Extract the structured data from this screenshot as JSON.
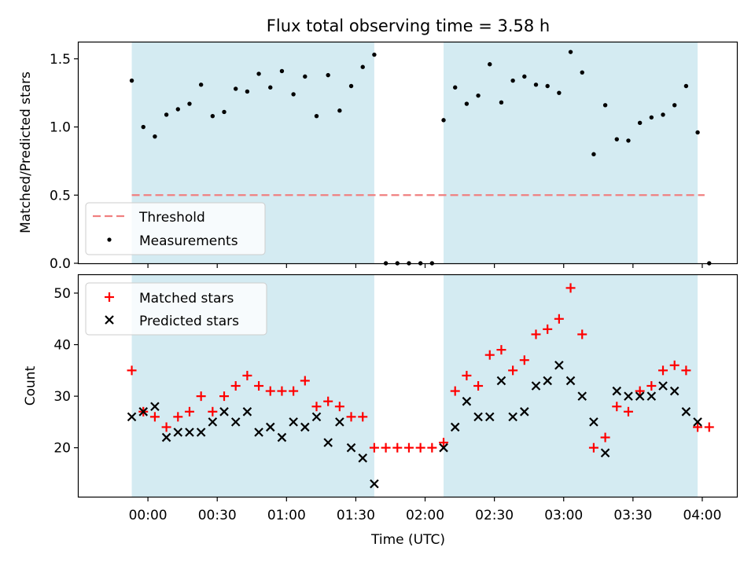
{
  "chart_data": {
    "title": "Flux total observing time = 3.58 h",
    "xlabel": "Time (UTC)",
    "x_ticks": [
      "00:00",
      "00:30",
      "01:00",
      "01:30",
      "02:00",
      "02:30",
      "03:00",
      "03:30",
      "04:00"
    ],
    "x_range_minutes": [
      -30,
      255
    ],
    "shaded_intervals_minutes": [
      [
        -7,
        98
      ],
      [
        128,
        238
      ]
    ],
    "shade_color": "#add8e6",
    "panels": [
      {
        "type": "scatter",
        "ylabel": "Matched/Predicted stars",
        "ylim": [
          0,
          1.62
        ],
        "y_ticks": [
          0.0,
          0.5,
          1.0,
          1.5
        ],
        "legend": "lower-left",
        "threshold": {
          "name": "Threshold",
          "value": 0.5,
          "x_range_minutes": [
            -7,
            241
          ],
          "color": "#f08080"
        },
        "series": [
          {
            "name": "Measurements",
            "color": "#000000",
            "x": [
              -7,
              -2,
              3,
              8,
              13,
              18,
              23,
              28,
              33,
              38,
              43,
              48,
              53,
              58,
              63,
              68,
              73,
              78,
              83,
              88,
              93,
              98,
              103,
              108,
              113,
              118,
              123,
              128,
              133,
              138,
              143,
              148,
              153,
              158,
              163,
              168,
              173,
              178,
              183,
              188,
              193,
              198,
              203,
              208,
              213,
              218,
              223,
              228,
              233,
              238,
              243
            ],
            "y": [
              1.34,
              1.0,
              0.93,
              1.09,
              1.13,
              1.17,
              1.31,
              1.08,
              1.11,
              1.28,
              1.26,
              1.39,
              1.29,
              1.41,
              1.24,
              1.37,
              1.08,
              1.38,
              1.12,
              1.3,
              1.44,
              1.53,
              0,
              0,
              0,
              0,
              0,
              1.05,
              1.29,
              1.17,
              1.23,
              1.46,
              1.18,
              1.34,
              1.37,
              1.31,
              1.3,
              1.25,
              1.55,
              1.4,
              0.8,
              1.16,
              0.91,
              0.9,
              1.03,
              1.07,
              1.09,
              1.16,
              1.3,
              0.96,
              0
            ]
          }
        ]
      },
      {
        "type": "scatter",
        "ylabel": "Count",
        "ylim": [
          10.5,
          53.5
        ],
        "y_ticks": [
          20,
          30,
          40,
          50
        ],
        "legend": "upper-left",
        "series": [
          {
            "name": "Matched stars",
            "marker": "+",
            "color": "#ff0000",
            "x": [
              -7,
              -2,
              3,
              8,
              13,
              18,
              23,
              28,
              33,
              38,
              43,
              48,
              53,
              58,
              63,
              68,
              73,
              78,
              83,
              88,
              93,
              98,
              103,
              108,
              113,
              118,
              123,
              128,
              133,
              138,
              143,
              148,
              153,
              158,
              163,
              168,
              173,
              178,
              183,
              188,
              193,
              198,
              203,
              208,
              213,
              218,
              223,
              228,
              233,
              238,
              243
            ],
            "y": [
              35,
              27,
              26,
              24,
              26,
              27,
              30,
              27,
              30,
              32,
              34,
              32,
              31,
              31,
              31,
              33,
              28,
              29,
              28,
              26,
              26,
              20,
              20,
              20,
              20,
              20,
              20,
              21,
              31,
              34,
              32,
              38,
              39,
              35,
              37,
              42,
              43,
              45,
              51,
              42,
              20,
              22,
              28,
              27,
              31,
              32,
              35,
              36,
              35,
              24,
              24
            ]
          },
          {
            "name": "Predicted stars",
            "marker": "x",
            "color": "#000000",
            "x": [
              -7,
              -2,
              3,
              8,
              13,
              18,
              23,
              28,
              33,
              38,
              43,
              48,
              53,
              58,
              63,
              68,
              73,
              78,
              83,
              88,
              93,
              98,
              128,
              133,
              138,
              143,
              148,
              153,
              158,
              163,
              168,
              173,
              178,
              183,
              188,
              193,
              198,
              203,
              208,
              213,
              218,
              223,
              228,
              233,
              238
            ],
            "y": [
              26,
              27,
              28,
              22,
              23,
              23,
              23,
              25,
              27,
              25,
              27,
              23,
              24,
              22,
              25,
              24,
              26,
              21,
              25,
              20,
              18,
              13,
              20,
              24,
              29,
              26,
              26,
              33,
              26,
              27,
              32,
              33,
              36,
              33,
              30,
              25,
              19,
              31,
              30,
              30,
              30,
              32,
              31,
              27,
              25
            ]
          }
        ]
      }
    ]
  }
}
